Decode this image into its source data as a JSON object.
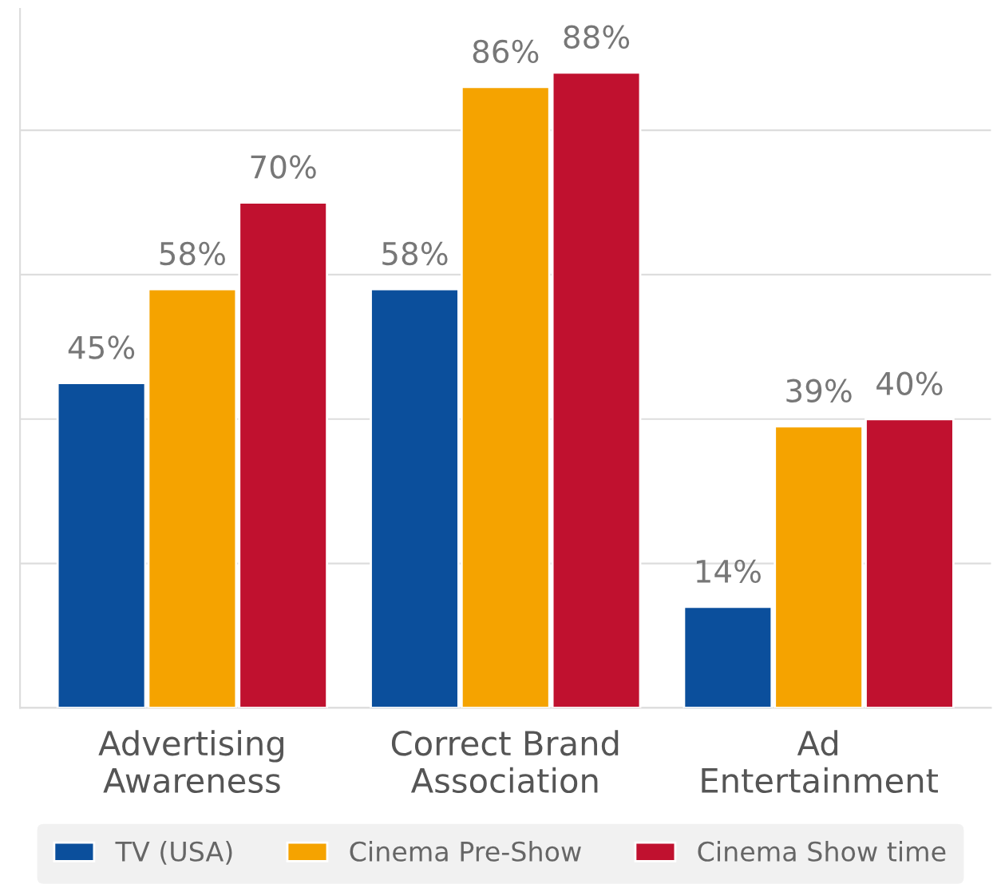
{
  "chart_data": {
    "type": "bar",
    "categories": [
      "Advertising\nAwareness",
      "Correct Brand\nAssociation",
      "Ad\nEntertainment"
    ],
    "series": [
      {
        "name": "TV (USA)",
        "color": "#0b4f9c",
        "values": [
          45,
          58,
          14
        ],
        "value_labels": [
          "45%",
          "58%",
          "14%"
        ]
      },
      {
        "name": "Cinema Pre-Show",
        "color": "#f5a300",
        "values": [
          58,
          86,
          39
        ],
        "value_labels": [
          "58%",
          "86%",
          "39%"
        ]
      },
      {
        "name": "Cinema Show time",
        "color": "#c0112f",
        "values": [
          70,
          88,
          40
        ],
        "value_labels": [
          "70%",
          "88%",
          "40%"
        ]
      }
    ],
    "tick_labels": "x",
    "grid": "y",
    "legend": "bottom"
  }
}
